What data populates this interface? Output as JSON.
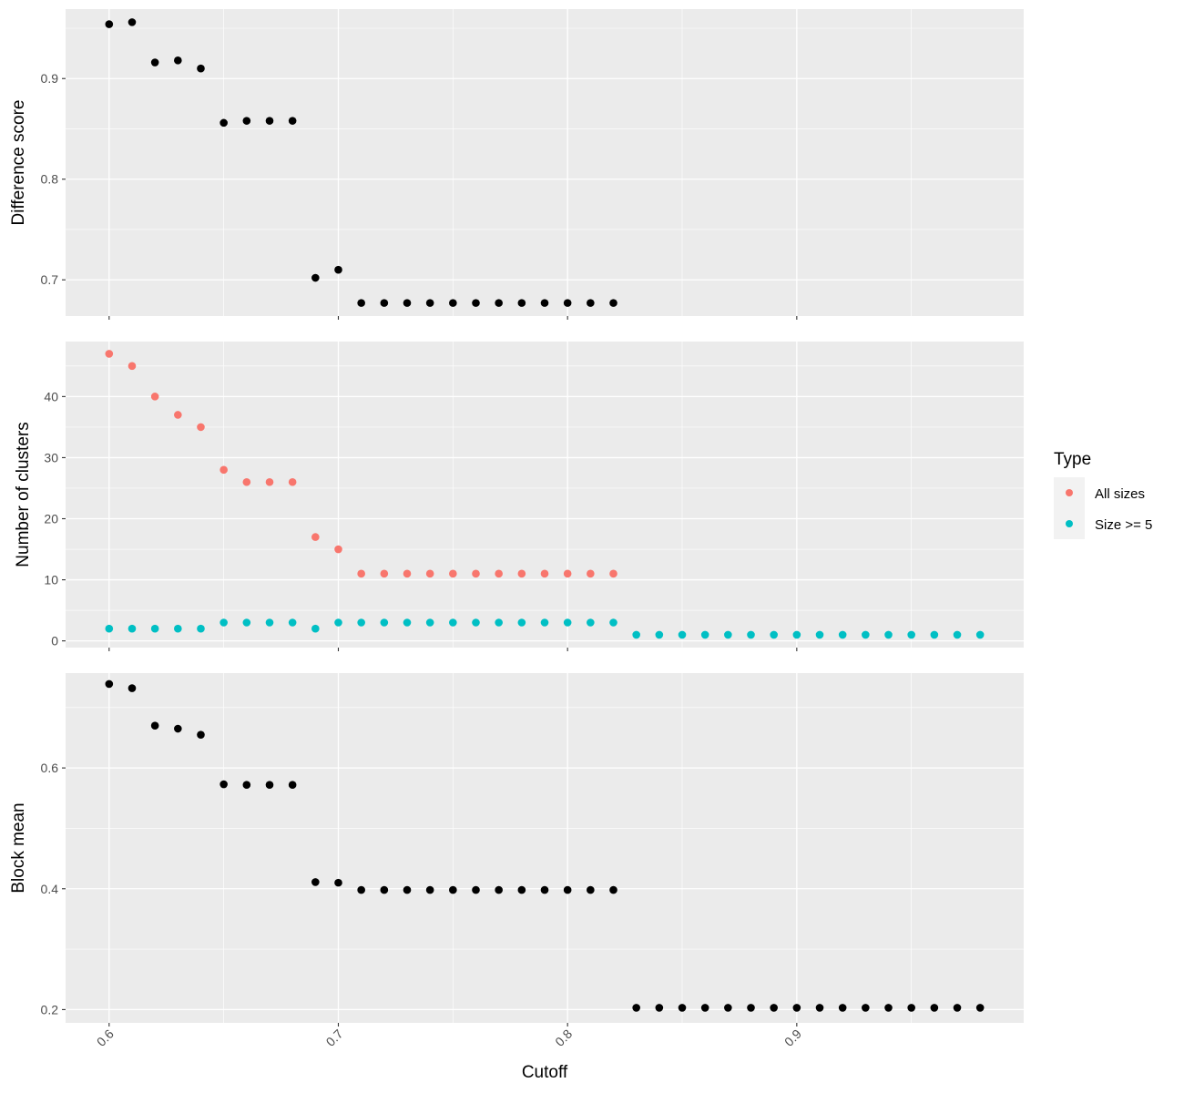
{
  "chart_data": {
    "type": "scatter",
    "xlabel": "Cutoff",
    "x_ticks": [
      "0.6",
      "0.7",
      "0.8",
      "0.9"
    ],
    "x_tick_values": [
      0.6,
      0.7,
      0.8,
      0.9
    ],
    "xlim": [
      0.581,
      0.999
    ],
    "background": "#EBEBEB",
    "grid": true,
    "legend": {
      "title": "Type",
      "position": "right",
      "entries": [
        {
          "label": "All sizes",
          "color": "#F8766D"
        },
        {
          "label": "Size >= 5",
          "color": "#00BFC4"
        }
      ]
    },
    "panels": [
      {
        "ylabel": "Difference score",
        "ylim": [
          0.664,
          0.969
        ],
        "y_ticks": [
          "0.7",
          "0.8",
          "0.9"
        ],
        "y_tick_values": [
          0.7,
          0.8,
          0.9
        ],
        "series": [
          {
            "color": "#000000",
            "x": [
              0.6,
              0.61,
              0.62,
              0.63,
              0.64,
              0.65,
              0.66,
              0.67,
              0.68,
              0.69,
              0.7,
              0.71,
              0.72,
              0.73,
              0.74,
              0.75,
              0.76,
              0.77,
              0.78,
              0.79,
              0.8,
              0.81,
              0.82
            ],
            "y": [
              0.954,
              0.956,
              0.916,
              0.918,
              0.91,
              0.856,
              0.858,
              0.858,
              0.858,
              0.702,
              0.71,
              0.677,
              0.677,
              0.677,
              0.677,
              0.677,
              0.677,
              0.677,
              0.677,
              0.677,
              0.677,
              0.677,
              0.677
            ]
          }
        ]
      },
      {
        "ylabel": "Number of clusters",
        "ylim": [
          -1.1,
          49.0
        ],
        "y_ticks": [
          "0",
          "10",
          "20",
          "30",
          "40"
        ],
        "y_tick_values": [
          0,
          10,
          20,
          30,
          40
        ],
        "series": [
          {
            "name": "All sizes",
            "color": "#F8766D",
            "x": [
              0.6,
              0.61,
              0.62,
              0.63,
              0.64,
              0.65,
              0.66,
              0.67,
              0.68,
              0.69,
              0.7,
              0.71,
              0.72,
              0.73,
              0.74,
              0.75,
              0.76,
              0.77,
              0.78,
              0.79,
              0.8,
              0.81,
              0.82
            ],
            "y": [
              47,
              45,
              40,
              37,
              35,
              28,
              26,
              26,
              26,
              17,
              15,
              11,
              11,
              11,
              11,
              11,
              11,
              11,
              11,
              11,
              11,
              11,
              11
            ]
          },
          {
            "name": "Size >= 5",
            "color": "#00BFC4",
            "x": [
              0.6,
              0.61,
              0.62,
              0.63,
              0.64,
              0.65,
              0.66,
              0.67,
              0.68,
              0.69,
              0.7,
              0.71,
              0.72,
              0.73,
              0.74,
              0.75,
              0.76,
              0.77,
              0.78,
              0.79,
              0.8,
              0.81,
              0.82,
              0.83,
              0.84,
              0.85,
              0.86,
              0.87,
              0.88,
              0.89,
              0.9,
              0.91,
              0.92,
              0.93,
              0.94,
              0.95,
              0.96,
              0.97,
              0.98
            ],
            "y": [
              2,
              2,
              2,
              2,
              2,
              3,
              3,
              3,
              3,
              2,
              3,
              3,
              3,
              3,
              3,
              3,
              3,
              3,
              3,
              3,
              3,
              3,
              3,
              1,
              1,
              1,
              1,
              1,
              1,
              1,
              1,
              1,
              1,
              1,
              1,
              1,
              1,
              1,
              1
            ]
          }
        ]
      },
      {
        "ylabel": "Block mean",
        "ylim": [
          0.178,
          0.757
        ],
        "y_ticks": [
          "0.2",
          "0.4",
          "0.6"
        ],
        "y_tick_values": [
          0.2,
          0.4,
          0.6
        ],
        "series": [
          {
            "color": "#000000",
            "x": [
              0.6,
              0.61,
              0.62,
              0.63,
              0.64,
              0.65,
              0.66,
              0.67,
              0.68,
              0.69,
              0.7,
              0.71,
              0.72,
              0.73,
              0.74,
              0.75,
              0.76,
              0.77,
              0.78,
              0.79,
              0.8,
              0.81,
              0.82,
              0.83,
              0.84,
              0.85,
              0.86,
              0.87,
              0.88,
              0.89,
              0.9,
              0.91,
              0.92,
              0.93,
              0.94,
              0.95,
              0.96,
              0.97,
              0.98
            ],
            "y": [
              0.739,
              0.732,
              0.67,
              0.665,
              0.655,
              0.573,
              0.572,
              0.572,
              0.572,
              0.411,
              0.41,
              0.398,
              0.398,
              0.398,
              0.398,
              0.398,
              0.398,
              0.398,
              0.398,
              0.398,
              0.398,
              0.398,
              0.398,
              0.203,
              0.203,
              0.203,
              0.203,
              0.203,
              0.203,
              0.203,
              0.203,
              0.203,
              0.203,
              0.203,
              0.203,
              0.203,
              0.203,
              0.203,
              0.203
            ]
          }
        ]
      }
    ]
  }
}
